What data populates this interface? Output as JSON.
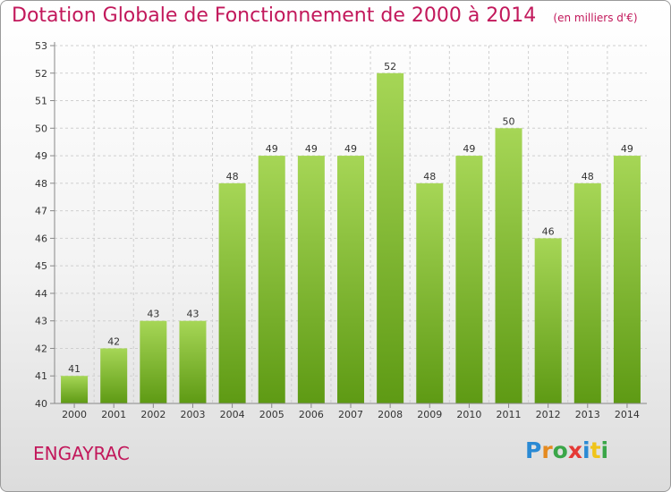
{
  "chart_data": {
    "type": "bar",
    "title": "Dotation Globale de Fonctionnement de 2000 à 2014",
    "subtitle": "(en milliers d'€)",
    "categories": [
      "2000",
      "2001",
      "2002",
      "2003",
      "2004",
      "2005",
      "2006",
      "2007",
      "2008",
      "2009",
      "2010",
      "2011",
      "2012",
      "2013",
      "2014"
    ],
    "values": [
      41,
      42,
      43,
      43,
      48,
      49,
      49,
      49,
      52,
      48,
      49,
      50,
      46,
      48,
      49
    ],
    "ylim": [
      40,
      53
    ],
    "yticks": [
      40,
      41,
      42,
      43,
      44,
      45,
      46,
      47,
      48,
      49,
      50,
      51,
      52,
      53
    ],
    "grid": true,
    "colors": {
      "bar_top": "#a6d656",
      "bar_bottom": "#5e9a14",
      "grid": "#cfcfcf"
    }
  },
  "commune": "ENGAYRAC",
  "logo": {
    "letters": [
      "P",
      "r",
      "o",
      "x",
      "i",
      "t",
      "i"
    ],
    "colors": [
      "#2a8ad4",
      "#e58a1f",
      "#3aa648",
      "#e53935",
      "#2a8ad4",
      "#f0c419",
      "#3aa648"
    ]
  }
}
